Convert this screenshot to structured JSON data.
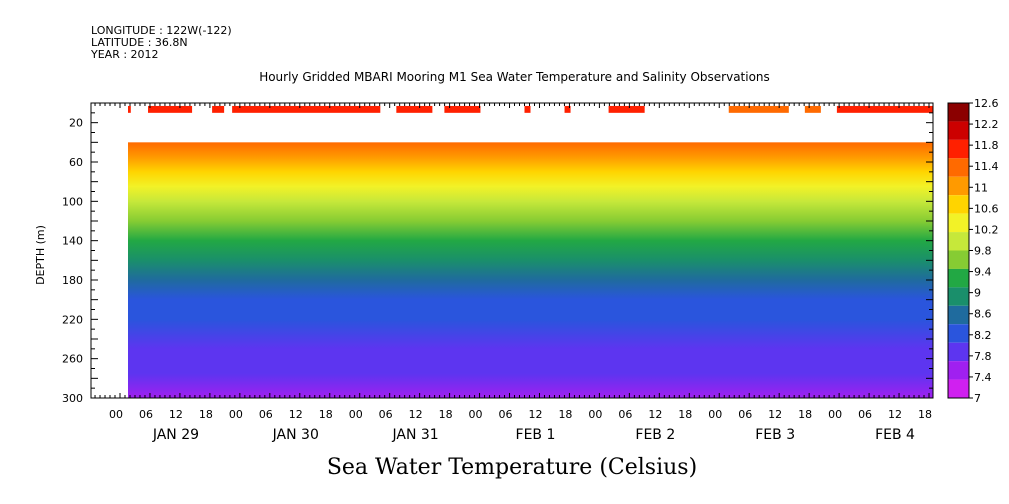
{
  "header": {
    "longitude": "LONGITUDE : 122W(-122)",
    "latitude": "LATITUDE : 36.8N",
    "year": "YEAR : 2012"
  },
  "chart_data": {
    "type": "heatmap",
    "title": "Hourly Gridded MBARI Mooring M1 Sea Water Temperature and Salinity Observations",
    "bottom_title": "Sea Water Temperature (Celsius)",
    "ylabel": "DEPTH (m)",
    "xlabel": "",
    "ylim": [
      300,
      0
    ],
    "y_ticks": [
      20,
      60,
      100,
      140,
      180,
      220,
      260,
      300
    ],
    "x_hour_ticks": [
      "00",
      "06",
      "12",
      "18",
      "00",
      "06",
      "12",
      "18",
      "00",
      "06",
      "12",
      "18",
      "00",
      "06",
      "12",
      "18",
      "00",
      "06",
      "12",
      "18",
      "00",
      "06",
      "12",
      "18",
      "00",
      "06",
      "12",
      "18"
    ],
    "x_day_labels": [
      "JAN 29",
      "JAN 30",
      "JAN 31",
      "FEB  1",
      "FEB  2",
      "FEB  3",
      "FEB  4"
    ],
    "colorbar": {
      "levels": [
        "12.6",
        "12.2",
        "11.8",
        "11.4",
        "11",
        "10.6",
        "10.2",
        "9.8",
        "9.4",
        "9",
        "8.6",
        "8.2",
        "7.8",
        "7.4",
        "7"
      ],
      "colors": [
        "#8b0000",
        "#cc0000",
        "#ff2000",
        "#ff6a00",
        "#ff9a00",
        "#ffd400",
        "#f2f227",
        "#c6e83a",
        "#86cc33",
        "#22a844",
        "#1a8f6b",
        "#1f6b9e",
        "#2a55dd",
        "#5d35f0",
        "#a020f0",
        "#d020f0"
      ]
    },
    "surface_bands": [
      {
        "start_hour": 0,
        "end_hour": 0.7,
        "color": "#ff2000"
      },
      {
        "start_hour": 5,
        "end_hour": 16,
        "color": "#ff2000"
      },
      {
        "start_hour": 21,
        "end_hour": 24,
        "color": "#ff2000"
      },
      {
        "start_hour": 26,
        "end_hour": 63,
        "color": "#ff2000"
      },
      {
        "start_hour": 67,
        "end_hour": 76,
        "color": "#ff2000"
      },
      {
        "start_hour": 79,
        "end_hour": 88,
        "color": "#ff2000"
      },
      {
        "start_hour": 99,
        "end_hour": 100.5,
        "color": "#ff2000"
      },
      {
        "start_hour": 109,
        "end_hour": 110.5,
        "color": "#ff2000"
      },
      {
        "start_hour": 120,
        "end_hour": 129,
        "color": "#ff2000"
      },
      {
        "start_hour": 150,
        "end_hour": 165,
        "color": "#ff6a00"
      },
      {
        "start_hour": 169,
        "end_hour": 173,
        "color": "#ff6a00"
      },
      {
        "start_hour": 177,
        "end_hour": 201,
        "color": "#ff2000"
      }
    ],
    "temperature_profile": [
      {
        "depth": 40,
        "temp": 11.6
      },
      {
        "depth": 55,
        "temp": 11.2
      },
      {
        "depth": 70,
        "temp": 10.6
      },
      {
        "depth": 85,
        "temp": 10.3
      },
      {
        "depth": 100,
        "temp": 10.0
      },
      {
        "depth": 120,
        "temp": 9.6
      },
      {
        "depth": 140,
        "temp": 9.1
      },
      {
        "depth": 160,
        "temp": 8.6
      },
      {
        "depth": 180,
        "temp": 8.3
      },
      {
        "depth": 200,
        "temp": 8.1
      },
      {
        "depth": 220,
        "temp": 7.9
      },
      {
        "depth": 250,
        "temp": 7.7
      },
      {
        "depth": 275,
        "temp": 7.5
      },
      {
        "depth": 300,
        "temp": 7.2
      }
    ]
  }
}
